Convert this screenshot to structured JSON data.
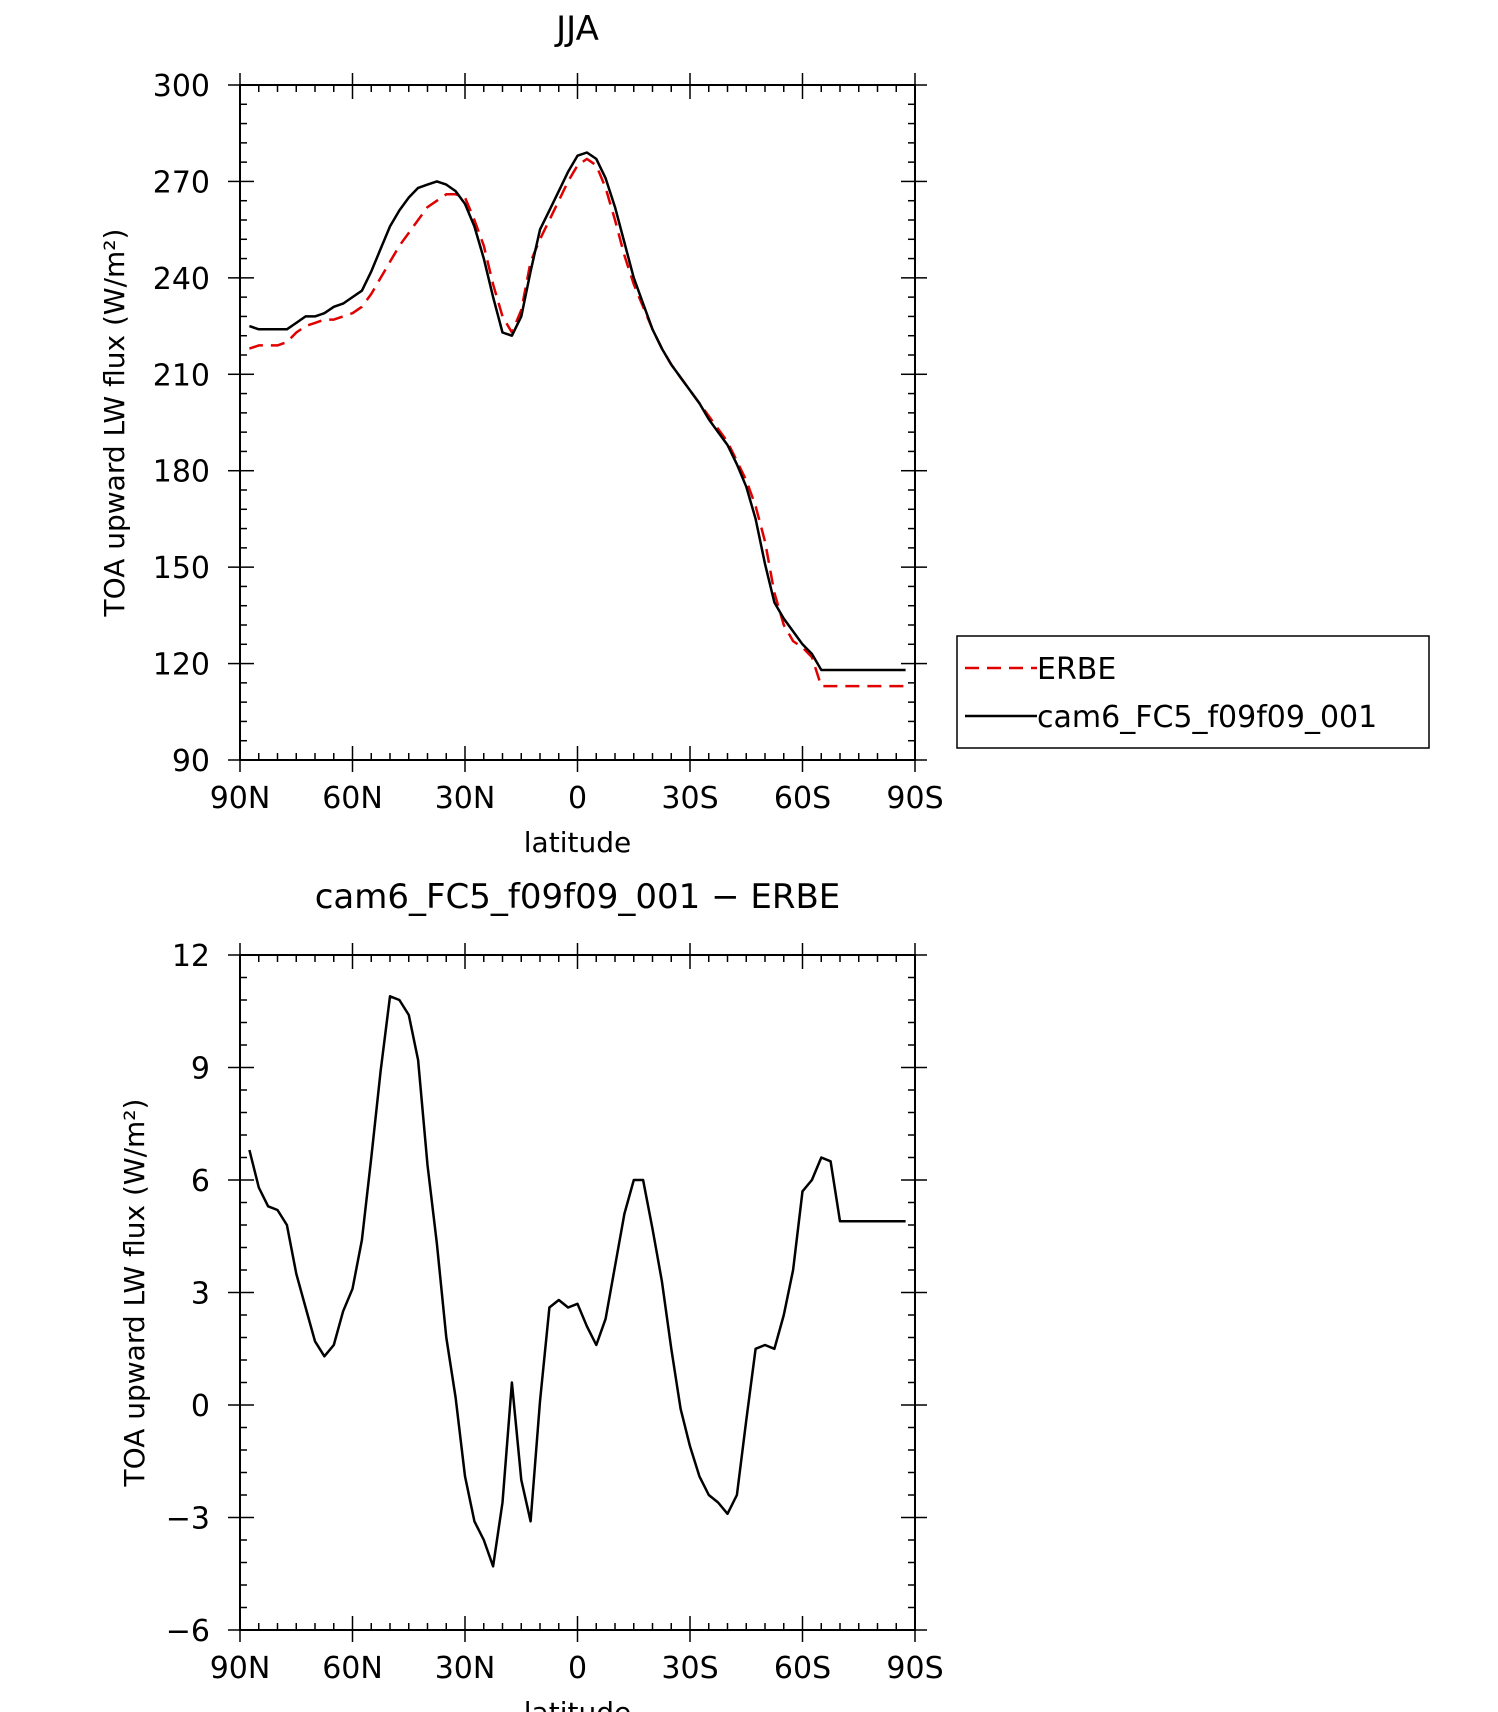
{
  "chart_data": [
    {
      "type": "line",
      "title": "JJA",
      "xlabel": "latitude",
      "ylabel": "TOA upward LW flux (W/m²)",
      "xlim": [
        -90,
        90
      ],
      "ylim": [
        90,
        300
      ],
      "xticks": [
        -90,
        -60,
        -30,
        0,
        30,
        60,
        90
      ],
      "xtick_labels": [
        "90N",
        "60N",
        "30N",
        "0",
        "30S",
        "60S",
        "90S"
      ],
      "yticks": [
        90,
        120,
        150,
        180,
        210,
        240,
        270,
        300
      ],
      "ytick_labels": [
        "90",
        "120",
        "150",
        "180",
        "210",
        "240",
        "270",
        "300"
      ],
      "grid": false,
      "legend_position": "right",
      "series": [
        {
          "name": "ERBE",
          "color": "#e00000",
          "dash": true,
          "x": [
            -87.5,
            -85,
            -82.5,
            -80,
            -77.5,
            -75,
            -72.5,
            -70,
            -67.5,
            -65,
            -62.5,
            -60,
            -57.5,
            -55,
            -52.5,
            -50,
            -47.5,
            -45,
            -42.5,
            -40,
            -37.5,
            -35,
            -32.5,
            -30,
            -27.5,
            -25,
            -22.5,
            -20,
            -17.5,
            -15,
            -12.5,
            -10,
            -7.5,
            -5,
            -2.5,
            0,
            2.5,
            5,
            7.5,
            10,
            12.5,
            15,
            17.5,
            20,
            22.5,
            25,
            27.5,
            30,
            32.5,
            35,
            37.5,
            40,
            42.5,
            45,
            47.5,
            50,
            52.5,
            55,
            57.5,
            60,
            62.5,
            65,
            67.5,
            70,
            72.5,
            75,
            77.5,
            80,
            82.5,
            85,
            87.5
          ],
          "values": [
            218,
            219,
            219,
            219,
            220,
            223,
            225,
            226,
            227,
            227,
            228,
            229,
            231,
            235,
            240,
            245,
            250,
            254,
            258,
            262,
            264,
            266,
            266,
            265,
            258,
            250,
            238,
            228,
            223,
            230,
            245,
            252,
            258,
            264,
            270,
            275,
            277,
            275,
            268,
            258,
            247,
            238,
            231,
            224,
            218,
            213,
            209,
            205,
            201,
            197,
            193,
            189,
            183,
            177,
            169,
            158,
            142,
            132,
            127,
            125,
            122,
            113,
            113,
            113,
            113,
            113,
            113,
            113,
            113,
            113,
            113
          ],
          "x_label_positions": []
        },
        {
          "name": "cam6_FC5_f09f09_001",
          "color": "#000000",
          "dash": false,
          "x": [],
          "values": []
        }
      ]
    },
    {
      "type": "line",
      "title": "cam6_FC5_f09f09_001 − ERBE",
      "xlabel": "latitude",
      "ylabel": "TOA upward LW flux (W/m²)",
      "xlim": [
        -90,
        90
      ],
      "ylim": [
        -6,
        12
      ],
      "xticks": [
        -90,
        -60,
        -30,
        0,
        30,
        60,
        90
      ],
      "xtick_labels": [
        "90N",
        "60N",
        "30N",
        "0",
        "30S",
        "60S",
        "90S"
      ],
      "yticks": [
        -6,
        -3,
        0,
        3,
        6,
        9,
        12
      ],
      "ytick_labels": [
        "−6",
        "−3",
        "0",
        "3",
        "6",
        "9",
        "12"
      ],
      "grid": false,
      "series": [
        {
          "name": "",
          "color": "#000000",
          "dash": false,
          "x": [
            -87.5,
            -85,
            -82.5,
            -80,
            -77.5,
            -75,
            -72.5,
            -70,
            -67.5,
            -65,
            -62.5,
            -60,
            -57.5,
            -55,
            -52.5,
            -50,
            -47.5,
            -45,
            -42.5,
            -40,
            -37.5,
            -35,
            -32.5,
            -30,
            -27.5,
            -25,
            -22.5,
            -20,
            -17.5,
            -15,
            -12.5,
            -10,
            -7.5,
            -5,
            -2.5,
            0,
            2.5,
            5,
            7.5,
            10,
            12.5,
            15,
            17.5,
            20,
            22.5,
            25,
            27.5,
            30,
            32.5,
            35,
            37.5,
            40,
            42.5,
            45,
            47.5,
            50,
            52.5,
            55,
            57.5,
            60,
            62.5,
            65,
            67.5,
            70,
            72.5,
            75,
            77.5,
            80,
            82.5,
            85,
            87.5
          ],
          "values": [
            6.8,
            5.8,
            5.3,
            5.2,
            4.8,
            3.5,
            2.6,
            1.7,
            1.3,
            1.6,
            2.5,
            3.1,
            4.4,
            6.6,
            8.9,
            10.9,
            10.8,
            10.4,
            9.2,
            6.4,
            4.3,
            1.8,
            0.2,
            -1.9,
            -3.1,
            -3.6,
            -4.3,
            -2.6,
            0.6,
            -2.0,
            -3.1,
            0.1,
            2.6,
            2.8,
            2.6,
            2.7,
            2.1,
            1.6,
            2.3,
            3.7,
            5.1,
            6.0,
            6.0,
            4.7,
            3.3,
            1.5,
            -0.1,
            -1.1,
            -1.9,
            -2.4,
            -2.6,
            -2.9,
            -2.4,
            -0.4,
            1.5,
            1.6,
            1.5,
            2.4,
            3.6,
            5.7,
            6.0,
            6.6,
            6.5,
            4.9,
            4.9,
            4.9,
            4.9,
            4.9,
            4.9,
            4.9,
            4.9
          ]
        }
      ]
    }
  ]
}
